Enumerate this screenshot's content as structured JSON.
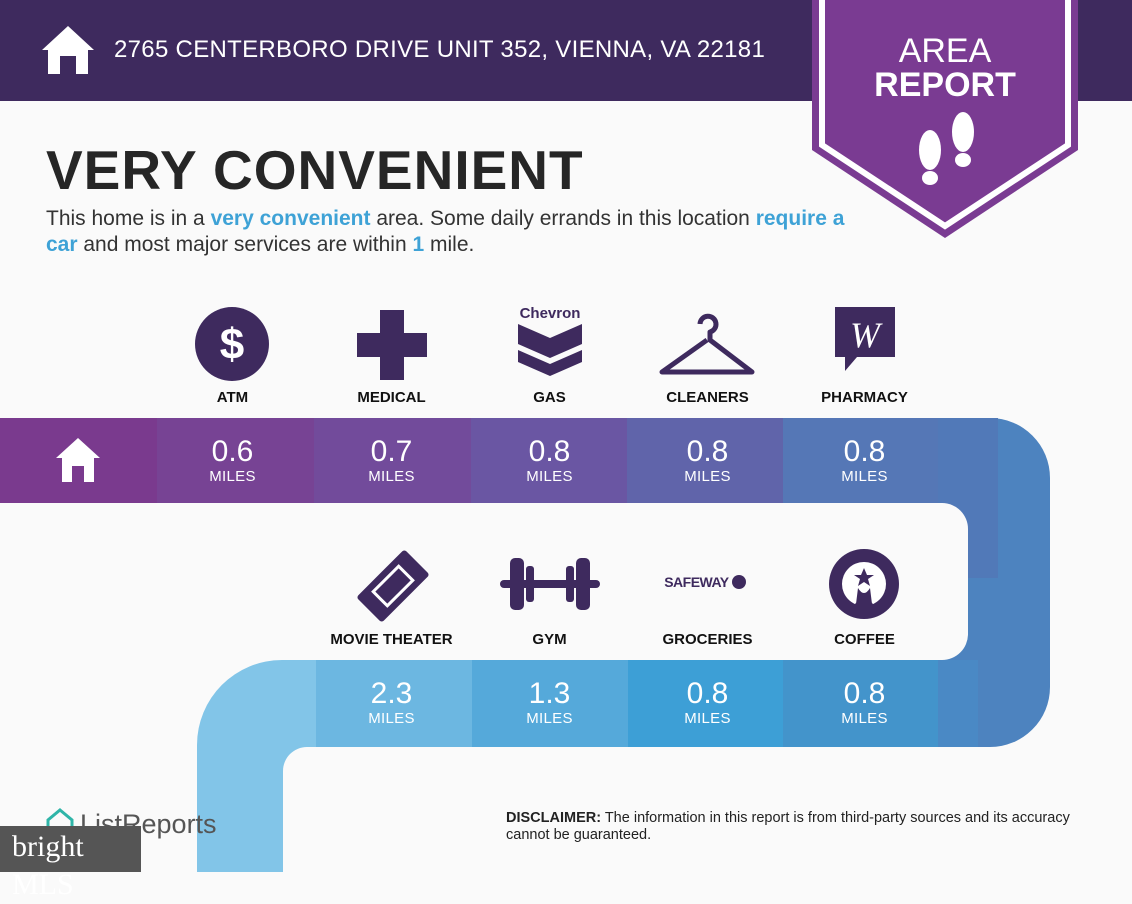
{
  "header": {
    "address": "2765 CENTERBORO DRIVE UNIT 352, VIENNA, VA 22181",
    "badge_line1": "AREA",
    "badge_line2": "REPORT"
  },
  "headline": "VERY CONVENIENT",
  "description": {
    "p1": "This home is in a ",
    "h1": "very convenient",
    "p2": " area. Some daily errands in this location ",
    "h2": "require a car",
    "p3": " and most major services are within ",
    "h3": "1",
    "p4": " mile."
  },
  "row1": [
    {
      "category": "ATM",
      "value": "0.6",
      "unit": "MILES",
      "icon": "dollar-icon"
    },
    {
      "category": "MEDICAL",
      "value": "0.7",
      "unit": "MILES",
      "icon": "medical-cross-icon"
    },
    {
      "category": "GAS",
      "value": "0.8",
      "unit": "MILES",
      "icon": "chevron-logo",
      "logo_text": "Chevron"
    },
    {
      "category": "CLEANERS",
      "value": "0.8",
      "unit": "MILES",
      "icon": "hanger-icon"
    },
    {
      "category": "PHARMACY",
      "value": "0.8",
      "unit": "MILES",
      "icon": "walgreens-logo"
    }
  ],
  "row2": [
    {
      "category": "MOVIE THEATER",
      "value": "2.3",
      "unit": "MILES",
      "icon": "ticket-icon"
    },
    {
      "category": "GYM",
      "value": "1.3",
      "unit": "MILES",
      "icon": "dumbbell-icon"
    },
    {
      "category": "GROCERIES",
      "value": "0.8",
      "unit": "MILES",
      "icon": "safeway-logo",
      "logo_text": "SAFEWAY"
    },
    {
      "category": "COFFEE",
      "value": "0.8",
      "unit": "MILES",
      "icon": "starbucks-logo"
    }
  ],
  "footer": {
    "brand": "ListReports",
    "disclaimer_label": "DISCLAIMER:",
    "disclaimer_text": " The information in this report is from third-party sources and its accuracy cannot be guaranteed.",
    "watermark": "bright MLS"
  },
  "colors": {
    "header": "#3e2a5e",
    "badge": "#7a3b92",
    "icon": "#3e2a5e",
    "accent": "#3ea2d6"
  }
}
